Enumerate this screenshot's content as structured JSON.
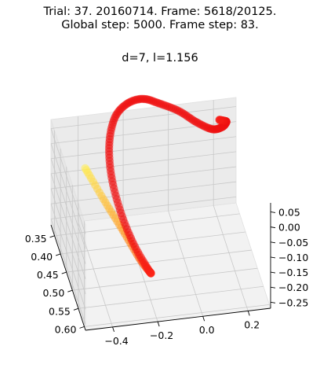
{
  "chart_data": {
    "type": "line",
    "projection": "3d",
    "title_lines": [
      "Trial: 37. 20160714. Frame: 5618/20125.",
      "Global step: 5000. Frame step: 83."
    ],
    "subtitle": "d=7, l=1.156",
    "grid": true,
    "x_axis": {
      "ticks": [
        -0.4,
        -0.2,
        0.0,
        0.2
      ],
      "tick_labels": [
        "−0.4",
        "−0.2",
        "0.0",
        "0.2"
      ],
      "range": [
        -0.52,
        0.3
      ]
    },
    "y_axis": {
      "ticks": [
        0.35,
        0.4,
        0.45,
        0.5,
        0.55,
        0.6
      ],
      "tick_labels": [
        "0.35",
        "0.40",
        "0.45",
        "0.50",
        "0.55",
        "0.60"
      ],
      "range": [
        0.32,
        0.61
      ]
    },
    "z_axis": {
      "ticks": [
        -0.25,
        -0.2,
        -0.15,
        -0.1,
        -0.05,
        0.0,
        0.05
      ],
      "tick_labels": [
        "−0.25",
        "−0.20",
        "−0.15",
        "−0.10",
        "−0.05",
        "0.00",
        "0.05"
      ],
      "range": [
        -0.27,
        0.08
      ]
    },
    "colormap": [
      "#ffee55",
      "#ff9922",
      "#ff2a1a",
      "#ee1111"
    ],
    "series": [
      {
        "points": [
          [
            -0.4,
            0.38,
            -0.02
          ],
          [
            -0.34,
            0.42,
            -0.08
          ],
          [
            -0.28,
            0.47,
            -0.13
          ],
          [
            -0.23,
            0.52,
            -0.17
          ],
          [
            -0.2,
            0.55,
            -0.18
          ],
          [
            -0.22,
            0.56,
            -0.15
          ],
          [
            -0.27,
            0.54,
            -0.09
          ],
          [
            -0.31,
            0.51,
            -0.02
          ],
          [
            -0.33,
            0.47,
            0.05
          ],
          [
            -0.32,
            0.43,
            0.11
          ],
          [
            -0.28,
            0.4,
            0.16
          ],
          [
            -0.22,
            0.39,
            0.19
          ],
          [
            -0.15,
            0.39,
            0.2
          ],
          [
            -0.08,
            0.4,
            0.19
          ],
          [
            0.0,
            0.41,
            0.17
          ],
          [
            0.07,
            0.42,
            0.14
          ],
          [
            0.14,
            0.42,
            0.11
          ],
          [
            0.19,
            0.41,
            0.1
          ],
          [
            0.22,
            0.39,
            0.09
          ],
          [
            0.22,
            0.37,
            0.07
          ],
          [
            0.21,
            0.35,
            0.05
          ]
        ]
      }
    ]
  }
}
